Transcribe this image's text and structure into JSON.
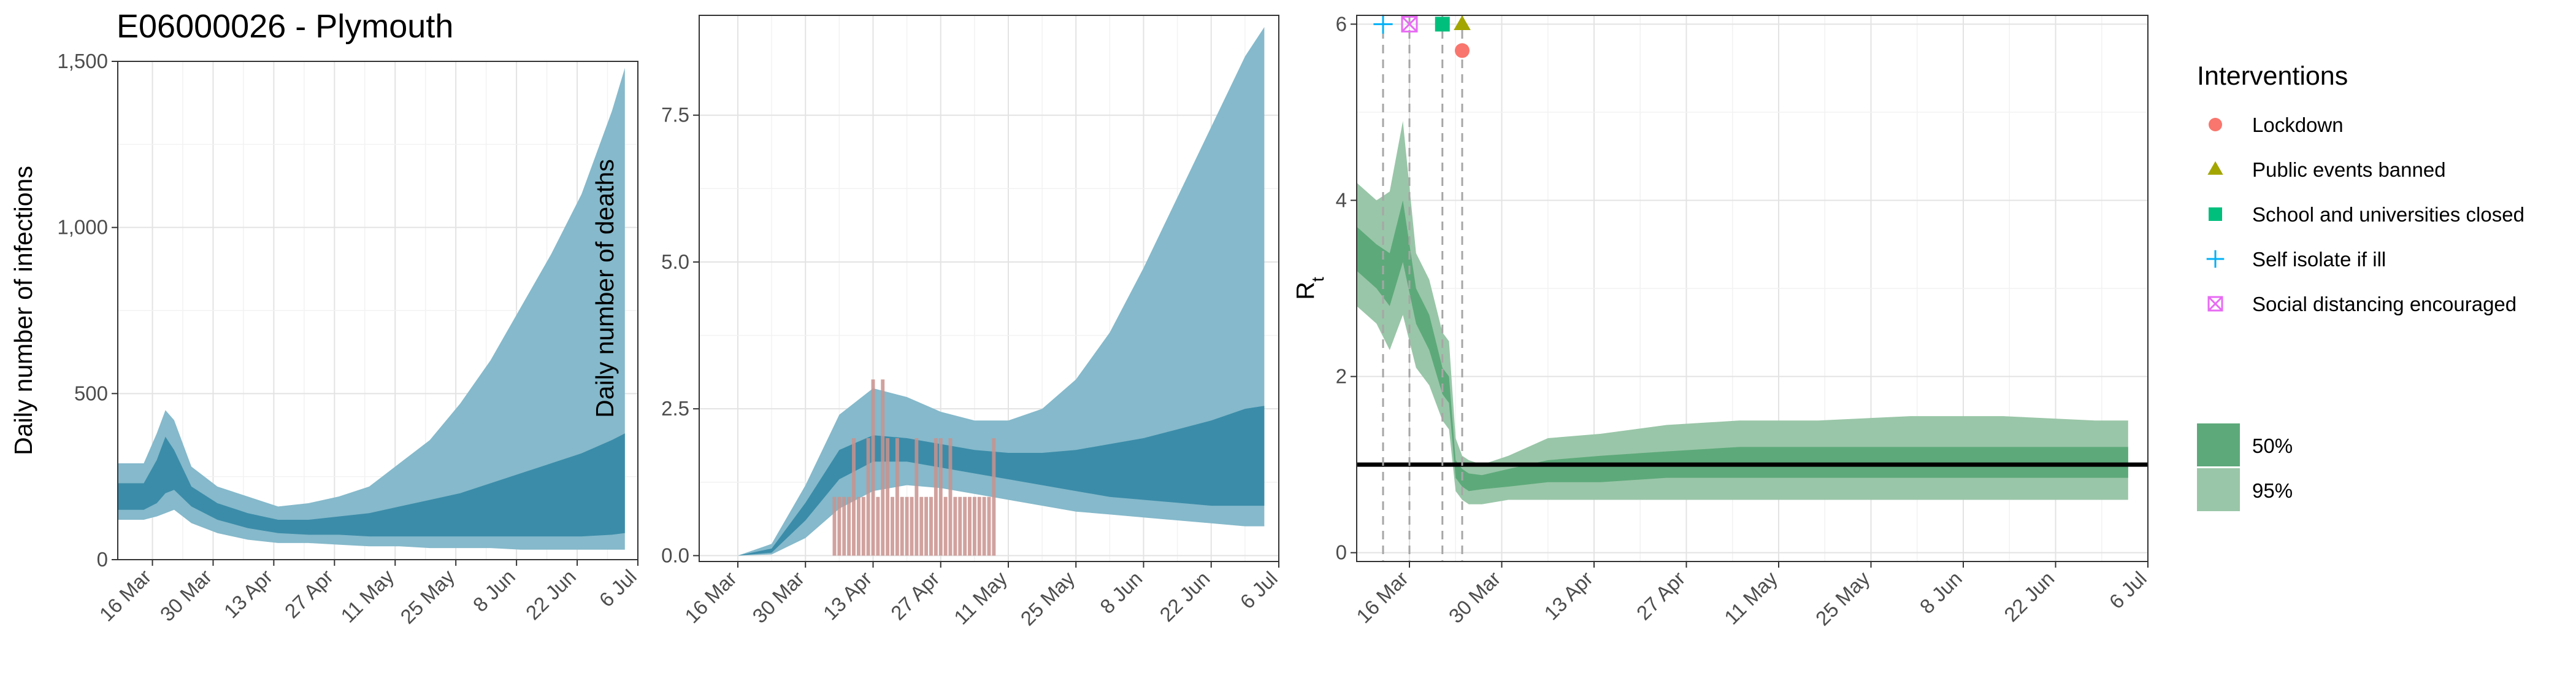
{
  "title": "E06000026 - Plymouth",
  "colors": {
    "band95": "#85b9cb",
    "band50": "#3b8ca9",
    "deaths_bar": "#c9928d",
    "rt95": "#99c6a8",
    "rt50": "#5da97a",
    "lockdown": "#f8766d",
    "events": "#a3a500",
    "schools": "#00bf7d",
    "selfisolate": "#00b0f6",
    "distancing": "#e76bf3"
  },
  "legend": {
    "title": "Interventions",
    "items": [
      {
        "label": "Lockdown",
        "shape": "circle",
        "color": "#f8766d"
      },
      {
        "label": "Public events banned",
        "shape": "triangle",
        "color": "#a3a500"
      },
      {
        "label": "School and universities closed",
        "shape": "square",
        "color": "#00bf7d"
      },
      {
        "label": "Self isolate if ill",
        "shape": "plus",
        "color": "#00b0f6"
      },
      {
        "label": "Social distancing encouraged",
        "shape": "boxcross",
        "color": "#e76bf3"
      }
    ],
    "bands": [
      {
        "label": "50%",
        "color": "#5da97a"
      },
      {
        "label": "95%",
        "color": "#99c6a8"
      }
    ]
  },
  "chart_data": [
    {
      "type": "area",
      "id": "infections",
      "xlabel": "",
      "ylabel": "Daily number of infections",
      "x_start": "2020-03-08",
      "x_end": "2020-07-06",
      "xticks": [
        "16 Mar",
        "30 Mar",
        "13 Apr",
        "27 Apr",
        "11 May",
        "25 May",
        "8 Jun",
        "22 Jun",
        "6 Jul"
      ],
      "ylim": [
        0,
        1500
      ],
      "yticks": [
        0,
        500,
        1000,
        1500
      ],
      "ytick_labels": [
        "0",
        "500",
        "1,000",
        "1,500"
      ],
      "grid": true,
      "series": [
        {
          "name": "95%",
          "dates": [
            "2020-03-08",
            "2020-03-14",
            "2020-03-17",
            "2020-03-19",
            "2020-03-21",
            "2020-03-25",
            "2020-03-31",
            "2020-04-07",
            "2020-04-14",
            "2020-04-21",
            "2020-04-28",
            "2020-05-05",
            "2020-05-12",
            "2020-05-19",
            "2020-05-26",
            "2020-06-02",
            "2020-06-09",
            "2020-06-16",
            "2020-06-23",
            "2020-06-30",
            "2020-07-03"
          ],
          "lower": [
            120,
            120,
            130,
            140,
            150,
            110,
            80,
            60,
            50,
            50,
            45,
            40,
            40,
            35,
            35,
            35,
            30,
            30,
            30,
            30,
            30
          ],
          "upper": [
            290,
            290,
            380,
            450,
            420,
            280,
            220,
            190,
            160,
            170,
            190,
            220,
            290,
            360,
            470,
            600,
            760,
            920,
            1100,
            1350,
            1480
          ]
        },
        {
          "name": "50%",
          "dates": [
            "2020-03-08",
            "2020-03-14",
            "2020-03-17",
            "2020-03-19",
            "2020-03-21",
            "2020-03-25",
            "2020-03-31",
            "2020-04-07",
            "2020-04-14",
            "2020-04-21",
            "2020-04-28",
            "2020-05-05",
            "2020-05-12",
            "2020-05-19",
            "2020-05-26",
            "2020-06-02",
            "2020-06-09",
            "2020-06-16",
            "2020-06-23",
            "2020-06-30",
            "2020-07-03"
          ],
          "lower": [
            150,
            150,
            170,
            200,
            210,
            160,
            120,
            95,
            80,
            75,
            75,
            70,
            70,
            70,
            70,
            70,
            70,
            70,
            70,
            75,
            80
          ],
          "upper": [
            230,
            230,
            300,
            370,
            330,
            220,
            170,
            140,
            120,
            120,
            130,
            140,
            160,
            180,
            200,
            230,
            260,
            290,
            320,
            360,
            380
          ]
        }
      ]
    },
    {
      "type": "area",
      "id": "deaths",
      "xlabel": "",
      "ylabel": "Daily number of deaths",
      "x_start": "2020-03-08",
      "x_end": "2020-07-06",
      "xticks": [
        "16 Mar",
        "30 Mar",
        "13 Apr",
        "27 Apr",
        "11 May",
        "25 May",
        "8 Jun",
        "22 Jun",
        "6 Jul"
      ],
      "ylim": [
        -0.1,
        9.2
      ],
      "yticks": [
        0,
        2.5,
        5,
        7.5
      ],
      "ytick_labels": [
        "0.0",
        "2.5",
        "5.0",
        "7.5"
      ],
      "grid": true,
      "series": [
        {
          "name": "95%",
          "dates": [
            "2020-03-16",
            "2020-03-23",
            "2020-03-30",
            "2020-04-06",
            "2020-04-13",
            "2020-04-20",
            "2020-04-27",
            "2020-05-04",
            "2020-05-11",
            "2020-05-18",
            "2020-05-25",
            "2020-06-01",
            "2020-06-08",
            "2020-06-15",
            "2020-06-22",
            "2020-06-29",
            "2020-07-03"
          ],
          "lower": [
            0,
            0.02,
            0.3,
            0.8,
            1.1,
            1.2,
            1.15,
            1.05,
            0.95,
            0.85,
            0.75,
            0.7,
            0.65,
            0.6,
            0.55,
            0.5,
            0.5
          ],
          "upper": [
            0,
            0.2,
            1.2,
            2.4,
            2.85,
            2.7,
            2.45,
            2.3,
            2.3,
            2.5,
            3.0,
            3.8,
            4.9,
            6.1,
            7.3,
            8.5,
            9.0
          ]
        },
        {
          "name": "50%",
          "dates": [
            "2020-03-16",
            "2020-03-23",
            "2020-03-30",
            "2020-04-06",
            "2020-04-13",
            "2020-04-20",
            "2020-04-27",
            "2020-05-04",
            "2020-05-11",
            "2020-05-18",
            "2020-05-25",
            "2020-06-01",
            "2020-06-08",
            "2020-06-15",
            "2020-06-22",
            "2020-06-29",
            "2020-07-03"
          ],
          "lower": [
            0,
            0.05,
            0.6,
            1.3,
            1.6,
            1.6,
            1.5,
            1.4,
            1.3,
            1.2,
            1.1,
            1.0,
            0.95,
            0.9,
            0.85,
            0.85,
            0.85
          ],
          "upper": [
            0,
            0.12,
            0.9,
            1.8,
            2.05,
            2.0,
            1.9,
            1.8,
            1.75,
            1.75,
            1.8,
            1.9,
            2.0,
            2.15,
            2.3,
            2.5,
            2.55
          ]
        }
      ],
      "observed_deaths": {
        "dates": [
          "2020-04-05",
          "2020-04-06",
          "2020-04-07",
          "2020-04-08",
          "2020-04-09",
          "2020-04-10",
          "2020-04-11",
          "2020-04-12",
          "2020-04-13",
          "2020-04-14",
          "2020-04-15",
          "2020-04-16",
          "2020-04-17",
          "2020-04-18",
          "2020-04-19",
          "2020-04-20",
          "2020-04-21",
          "2020-04-22",
          "2020-04-23",
          "2020-04-24",
          "2020-04-25",
          "2020-04-26",
          "2020-04-27",
          "2020-04-28",
          "2020-04-29",
          "2020-04-30",
          "2020-05-01",
          "2020-05-02",
          "2020-05-03",
          "2020-05-04",
          "2020-05-05",
          "2020-05-06",
          "2020-05-07",
          "2020-05-08"
        ],
        "values": [
          1,
          1,
          1,
          1,
          2,
          1,
          1,
          2,
          3,
          1,
          3,
          2,
          1,
          2,
          1,
          1,
          1,
          2,
          1,
          1,
          1,
          2,
          2,
          1,
          2,
          1,
          1,
          1,
          1,
          1,
          1,
          1,
          1,
          2
        ]
      }
    },
    {
      "type": "area",
      "id": "rt",
      "xlabel": "",
      "ylabel": "Rt",
      "x_start": "2020-03-08",
      "x_end": "2020-07-06",
      "xticks": [
        "16 Mar",
        "30 Mar",
        "13 Apr",
        "27 Apr",
        "11 May",
        "25 May",
        "8 Jun",
        "22 Jun",
        "6 Jul"
      ],
      "ylim": [
        -0.1,
        6.1
      ],
      "yticks": [
        0,
        2,
        4,
        6
      ],
      "ytick_labels": [
        "0",
        "2",
        "4",
        "6"
      ],
      "grid": true,
      "reference_line": 1,
      "series": [
        {
          "name": "95%",
          "dates": [
            "2020-03-08",
            "2020-03-11",
            "2020-03-13",
            "2020-03-15",
            "2020-03-17",
            "2020-03-19",
            "2020-03-21",
            "2020-03-22",
            "2020-03-23",
            "2020-03-24",
            "2020-03-25",
            "2020-03-27",
            "2020-03-31",
            "2020-04-06",
            "2020-04-14",
            "2020-04-24",
            "2020-05-05",
            "2020-05-17",
            "2020-05-31",
            "2020-06-14",
            "2020-06-28",
            "2020-07-03"
          ],
          "lower": [
            2.8,
            2.6,
            2.3,
            2.7,
            2.1,
            1.9,
            1.5,
            1.4,
            0.7,
            0.6,
            0.55,
            0.55,
            0.6,
            0.6,
            0.6,
            0.6,
            0.6,
            0.6,
            0.6,
            0.6,
            0.6,
            0.6
          ],
          "upper": [
            4.2,
            4.0,
            4.1,
            4.9,
            3.4,
            3.1,
            2.5,
            2.4,
            1.3,
            1.1,
            1.05,
            1.0,
            1.1,
            1.3,
            1.35,
            1.45,
            1.5,
            1.5,
            1.55,
            1.55,
            1.5,
            1.5
          ]
        },
        {
          "name": "50%",
          "dates": [
            "2020-03-08",
            "2020-03-11",
            "2020-03-13",
            "2020-03-15",
            "2020-03-17",
            "2020-03-19",
            "2020-03-21",
            "2020-03-22",
            "2020-03-23",
            "2020-03-24",
            "2020-03-25",
            "2020-03-27",
            "2020-03-31",
            "2020-04-06",
            "2020-04-14",
            "2020-04-24",
            "2020-05-05",
            "2020-05-17",
            "2020-05-31",
            "2020-06-14",
            "2020-06-28",
            "2020-07-03"
          ],
          "lower": [
            3.2,
            3.0,
            2.8,
            3.3,
            2.6,
            2.3,
            1.8,
            1.7,
            0.85,
            0.75,
            0.7,
            0.72,
            0.75,
            0.8,
            0.8,
            0.85,
            0.85,
            0.85,
            0.85,
            0.85,
            0.85,
            0.85
          ],
          "upper": [
            3.7,
            3.5,
            3.4,
            4.0,
            3.0,
            2.7,
            2.1,
            2.0,
            1.05,
            0.95,
            0.9,
            0.88,
            0.95,
            1.05,
            1.1,
            1.15,
            1.2,
            1.2,
            1.2,
            1.2,
            1.2,
            1.2
          ]
        }
      ],
      "interventions": [
        {
          "name": "Self isolate if ill",
          "date": "2020-03-12",
          "y": 6,
          "shape": "plus",
          "color": "#00b0f6"
        },
        {
          "name": "Social distancing encouraged",
          "date": "2020-03-16",
          "y": 6,
          "shape": "boxcross",
          "color": "#e76bf3"
        },
        {
          "name": "School and universities closed",
          "date": "2020-03-21",
          "y": 6,
          "shape": "square",
          "color": "#00bf7d"
        },
        {
          "name": "Public events banned",
          "date": "2020-03-24",
          "y": 6,
          "shape": "triangle",
          "color": "#a3a500"
        },
        {
          "name": "Lockdown",
          "date": "2020-03-24",
          "y": 5.7,
          "shape": "circle",
          "color": "#f8766d"
        }
      ]
    }
  ]
}
